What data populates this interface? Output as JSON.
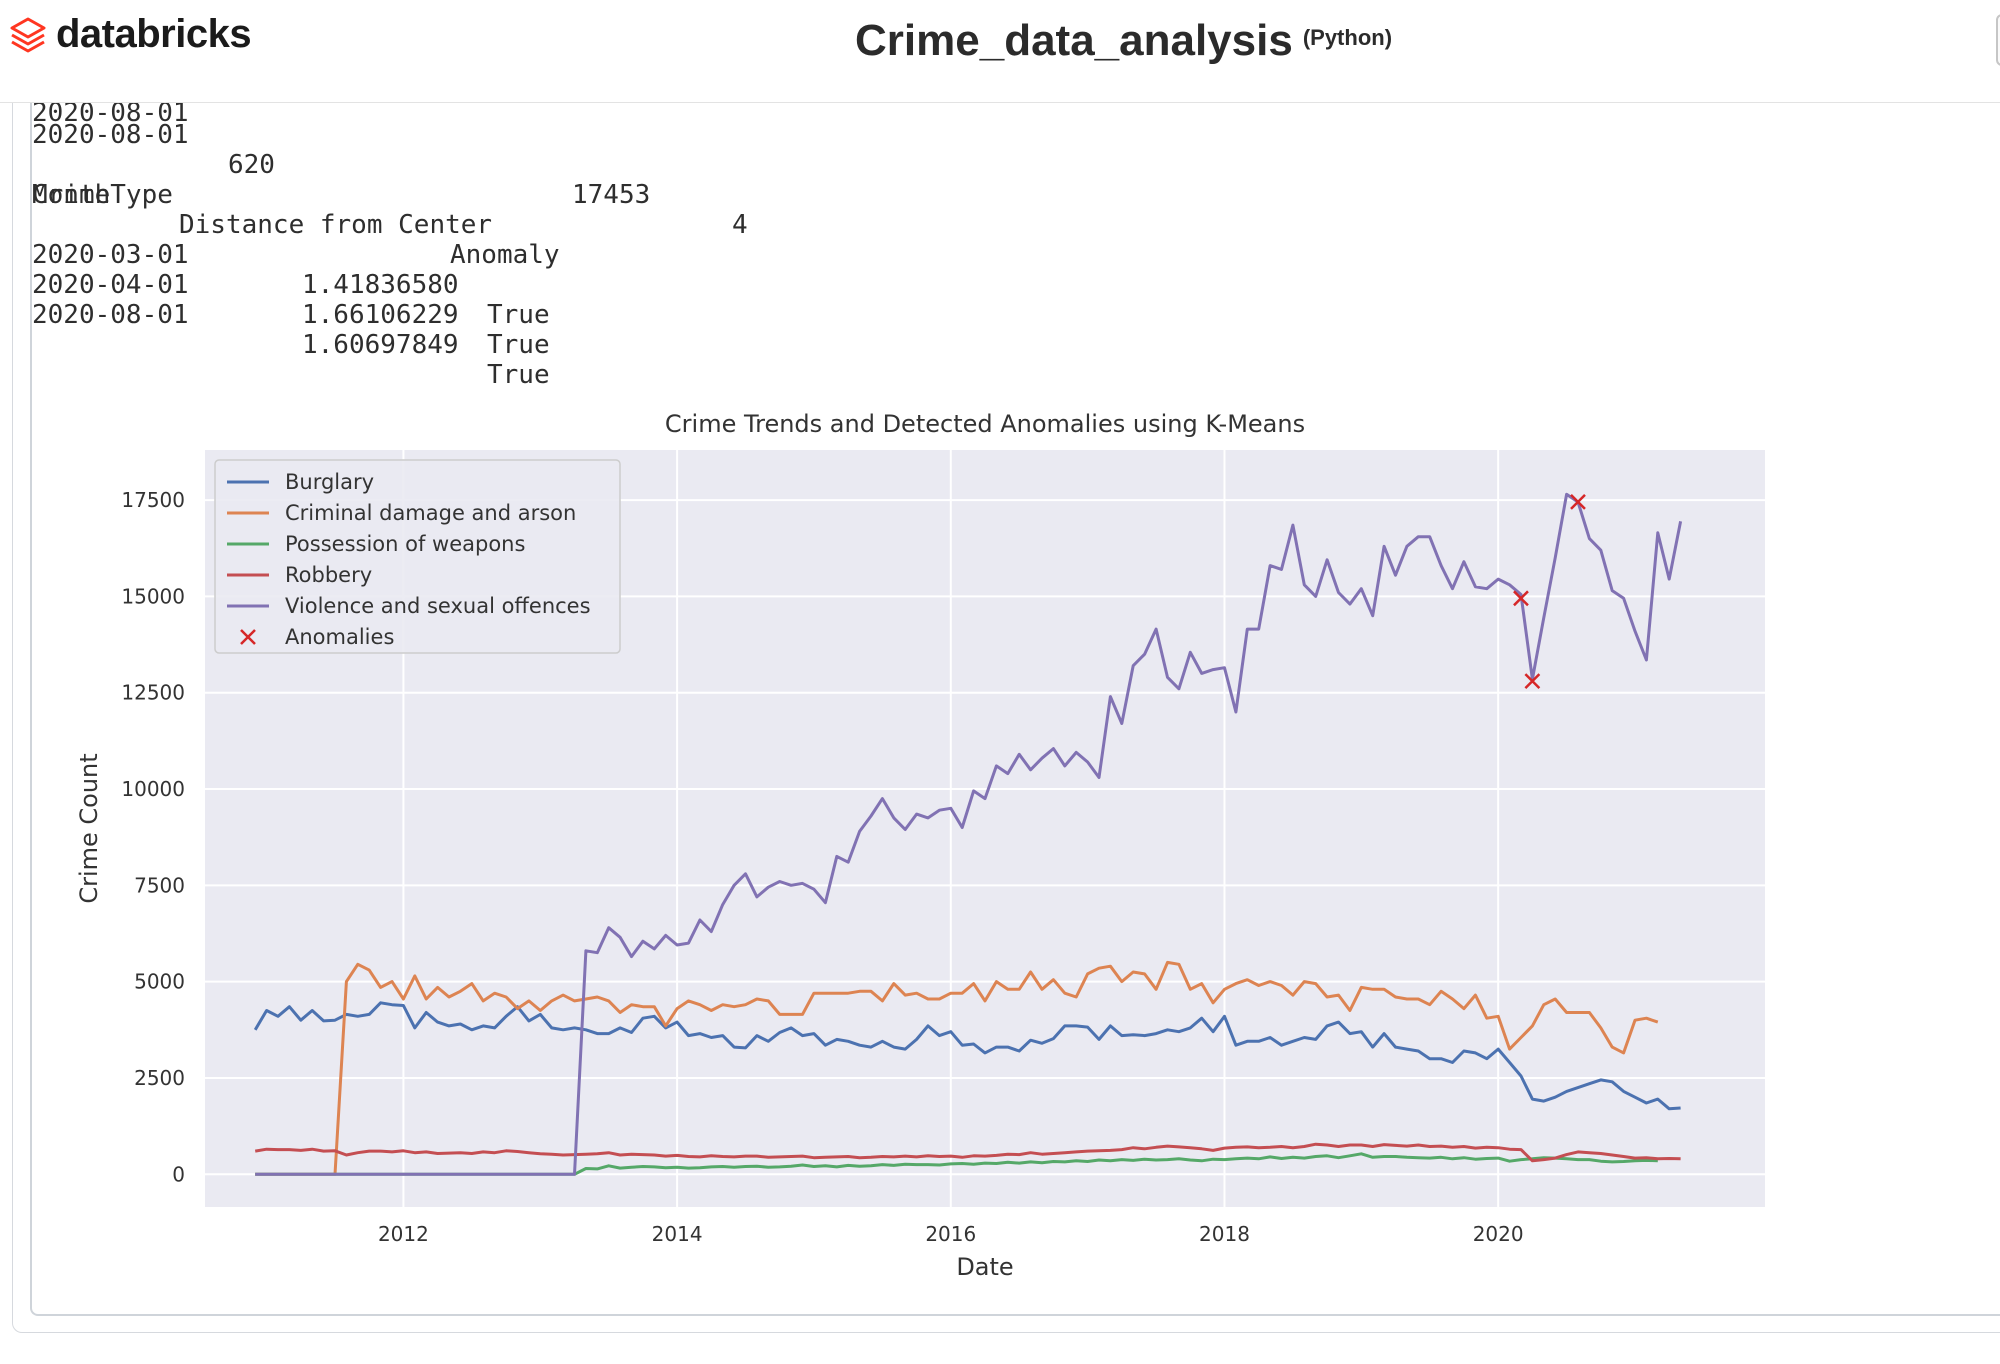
{
  "app": {
    "brand": "databricks",
    "notebook_title": "Crime_data_analysis",
    "language": "(Python)"
  },
  "output": {
    "first_table_row": {
      "month": "2020-08-01",
      "col1": "620",
      "col2": "17453",
      "col3": "4"
    },
    "anomaly_table": {
      "header": [
        "CrimeType",
        "Distance from Center",
        "Anomaly"
      ],
      "index_name": "Month",
      "rows": [
        {
          "month": "2020-03-01",
          "distance": "1.41836580",
          "anomaly": "True"
        },
        {
          "month": "2020-04-01",
          "distance": "1.66106229",
          "anomaly": "True"
        },
        {
          "month": "2020-08-01",
          "distance": "1.60697849",
          "anomaly": "True"
        }
      ]
    }
  },
  "chart_data": {
    "type": "line",
    "title": "Crime Trends and Detected Anomalies using K-Means",
    "xlabel": "Date",
    "ylabel": "Crime Count",
    "xlim": [
      2010.55,
      2021.95
    ],
    "ylim": [
      -850,
      18800
    ],
    "xticks": [
      2012,
      2014,
      2016,
      2018,
      2020
    ],
    "yticks": [
      0,
      2500,
      5000,
      7500,
      10000,
      12500,
      15000,
      17500
    ],
    "grid": true,
    "legend_position": "top-left",
    "background": "#eaeaf2",
    "series": [
      {
        "name": "Burglary",
        "color": "#4c72b0",
        "x_start": "2010-12",
        "values": [
          3750,
          4250,
          4100,
          4350,
          4000,
          4250,
          3980,
          4000,
          4150,
          4100,
          4150,
          4450,
          4400,
          4380,
          3800,
          4200,
          3950,
          3850,
          3900,
          3750,
          3850,
          3800,
          4100,
          4350,
          3980,
          4150,
          3800,
          3750,
          3800,
          3750,
          3650,
          3650,
          3800,
          3680,
          4050,
          4100,
          3800,
          3950,
          3600,
          3650,
          3550,
          3600,
          3300,
          3280,
          3600,
          3450,
          3680,
          3800,
          3600,
          3650,
          3350,
          3500,
          3450,
          3350,
          3300,
          3450,
          3300,
          3250,
          3500,
          3850,
          3600,
          3700,
          3350,
          3380,
          3150,
          3300,
          3300,
          3200,
          3480,
          3400,
          3520,
          3850,
          3850,
          3820,
          3500,
          3850,
          3600,
          3620,
          3600,
          3650,
          3750,
          3700,
          3800,
          4050,
          3700,
          4100,
          3350,
          3450,
          3450,
          3550,
          3350,
          3450,
          3550,
          3500,
          3850,
          3950,
          3650,
          3700,
          3300,
          3650,
          3300,
          3250,
          3200,
          3000,
          3000,
          2900,
          3200,
          3150,
          3000,
          3250,
          2900,
          2550,
          1950,
          1900,
          2000,
          2150,
          2250,
          2350,
          2450,
          2400,
          2150,
          2000,
          1850,
          1950,
          1700,
          1720
        ]
      },
      {
        "name": "Criminal damage and arson",
        "color": "#dd8452",
        "x_start": "2010-12",
        "values": [
          0,
          0,
          0,
          0,
          0,
          0,
          0,
          0,
          5000,
          5450,
          5300,
          4850,
          5000,
          4550,
          5150,
          4550,
          4850,
          4600,
          4750,
          4950,
          4500,
          4700,
          4600,
          4300,
          4500,
          4250,
          4500,
          4650,
          4500,
          4550,
          4600,
          4500,
          4200,
          4400,
          4350,
          4350,
          3850,
          4300,
          4500,
          4400,
          4250,
          4400,
          4350,
          4400,
          4550,
          4500,
          4150,
          4150,
          4150,
          4700,
          4700,
          4700,
          4700,
          4750,
          4750,
          4500,
          4950,
          4650,
          4700,
          4550,
          4550,
          4700,
          4700,
          4950,
          4500,
          5000,
          4800,
          4800,
          5250,
          4800,
          5050,
          4700,
          4600,
          5200,
          5350,
          5400,
          5000,
          5250,
          5200,
          4800,
          5500,
          5450,
          4800,
          4950,
          4450,
          4800,
          4950,
          5050,
          4900,
          5000,
          4900,
          4650,
          5000,
          4950,
          4600,
          4650,
          4250,
          4850,
          4800,
          4800,
          4600,
          4550,
          4550,
          4400,
          4750,
          4550,
          4300,
          4650,
          4050,
          4100,
          3250,
          3550,
          3850,
          4400,
          4550,
          4200,
          4200,
          4200,
          3800,
          3300,
          3150,
          4000,
          4050,
          3950
        ]
      },
      {
        "name": "Possession of weapons",
        "color": "#55a868",
        "x_start": "2010-12",
        "values": [
          0,
          0,
          0,
          0,
          0,
          0,
          0,
          0,
          0,
          0,
          0,
          0,
          0,
          0,
          0,
          0,
          0,
          0,
          0,
          0,
          0,
          0,
          0,
          0,
          0,
          0,
          0,
          0,
          0,
          150,
          140,
          220,
          160,
          180,
          200,
          190,
          170,
          180,
          160,
          170,
          190,
          200,
          180,
          200,
          210,
          180,
          190,
          210,
          240,
          200,
          220,
          190,
          230,
          210,
          220,
          250,
          230,
          260,
          250,
          250,
          240,
          270,
          280,
          260,
          290,
          280,
          310,
          290,
          320,
          300,
          330,
          320,
          350,
          330,
          370,
          350,
          380,
          360,
          390,
          370,
          380,
          400,
          370,
          350,
          390,
          380,
          400,
          420,
          400,
          450,
          410,
          440,
          420,
          460,
          480,
          430,
          480,
          530,
          440,
          460,
          460,
          440,
          430,
          420,
          440,
          400,
          430,
          390,
          410,
          420,
          340,
          380,
          400,
          430,
          420,
          400,
          380,
          380,
          340,
          320,
          330,
          350,
          360,
          350
        ]
      },
      {
        "name": "Robbery",
        "color": "#c44e52",
        "x_start": "2010-12",
        "values": [
          600,
          650,
          640,
          640,
          620,
          650,
          600,
          610,
          500,
          560,
          600,
          600,
          580,
          610,
          560,
          580,
          540,
          550,
          560,
          540,
          580,
          560,
          610,
          590,
          560,
          530,
          520,
          500,
          510,
          520,
          530,
          560,
          500,
          520,
          510,
          500,
          470,
          490,
          460,
          450,
          480,
          460,
          450,
          470,
          470,
          440,
          450,
          460,
          470,
          430,
          440,
          450,
          460,
          430,
          440,
          460,
          450,
          470,
          450,
          480,
          460,
          470,
          440,
          480,
          470,
          490,
          520,
          510,
          560,
          520,
          540,
          560,
          580,
          600,
          610,
          620,
          640,
          690,
          660,
          700,
          730,
          710,
          690,
          660,
          620,
          680,
          700,
          710,
          690,
          700,
          720,
          690,
          720,
          780,
          760,
          720,
          760,
          760,
          720,
          770,
          750,
          730,
          760,
          720,
          730,
          700,
          720,
          680,
          700,
          690,
          650,
          640,
          350,
          380,
          420,
          510,
          580,
          560,
          540,
          500,
          460,
          420,
          430,
          400,
          410,
          400
        ]
      },
      {
        "name": "Violence and sexual offences",
        "color": "#8172b3",
        "x_start": "2010-12",
        "values": [
          0,
          0,
          0,
          0,
          0,
          0,
          0,
          0,
          0,
          0,
          0,
          0,
          0,
          0,
          0,
          0,
          0,
          0,
          0,
          0,
          0,
          0,
          0,
          0,
          0,
          0,
          0,
          0,
          0,
          5800,
          5750,
          6400,
          6150,
          5650,
          6050,
          5850,
          6200,
          5950,
          6000,
          6600,
          6300,
          7000,
          7500,
          7800,
          7200,
          7450,
          7600,
          7500,
          7550,
          7400,
          7050,
          8250,
          8100,
          8900,
          9300,
          9750,
          9250,
          8950,
          9350,
          9250,
          9450,
          9500,
          9000,
          9950,
          9750,
          10600,
          10400,
          10900,
          10500,
          10800,
          11050,
          10600,
          10950,
          10700,
          10300,
          12400,
          11700,
          13200,
          13500,
          14150,
          12900,
          12600,
          13550,
          13000,
          13100,
          13150,
          12000,
          14150,
          14150,
          15800,
          15700,
          16850,
          15300,
          15000,
          15950,
          15100,
          14800,
          15200,
          14500,
          16300,
          15550,
          16300,
          16550,
          16550,
          15800,
          15200,
          15900,
          15250,
          15200,
          15450,
          15300,
          15050,
          12850,
          14450,
          16000,
          17650,
          17450,
          16500,
          16200,
          15150,
          14950,
          14100,
          13350,
          16650,
          15450,
          16950
        ]
      }
    ],
    "anomalies": {
      "name": "Anomalies",
      "color": "#d62728",
      "points": [
        {
          "x": "2020-03",
          "y": 14950
        },
        {
          "x": "2020-04",
          "y": 12800
        },
        {
          "x": "2020-08",
          "y": 17453
        }
      ]
    }
  }
}
